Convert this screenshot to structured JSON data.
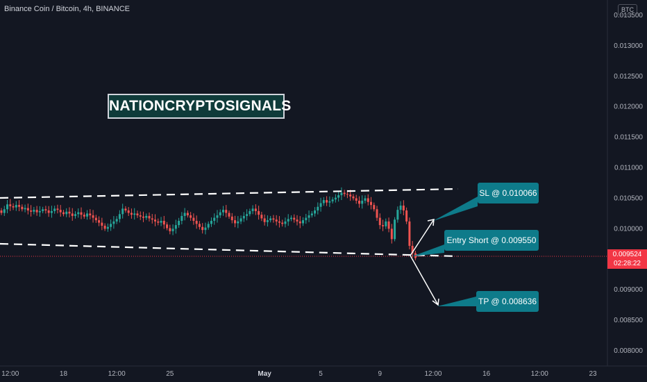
{
  "header": {
    "title": "Binance Coin / Bitcoin, 4h, BINANCE",
    "currency_badge": "BTC"
  },
  "watermark": {
    "text": "NATIONCRYPTOSIGNALS"
  },
  "price_tag": {
    "price": "0.009524",
    "countdown": "02:28:22"
  },
  "annotations": {
    "sl": "SL @ 0.010066",
    "entry": "Entry Short @ 0.009550",
    "tp": "TP @ 0.008636"
  },
  "colors": {
    "up": "#26a69a",
    "down": "#ef5350",
    "background": "#131722",
    "callout": "#0e7b8a",
    "price_tag": "#f23645"
  },
  "chart_data": {
    "type": "candlestick",
    "title": "Binance Coin / Bitcoin, 4h, BINANCE",
    "ylim": [
      0.00775,
      0.01375
    ],
    "y_ticks": [
      "0.013500",
      "0.013000",
      "0.012500",
      "0.012000",
      "0.011500",
      "0.011000",
      "0.010500",
      "0.010000",
      "0.009500",
      "0.009000",
      "0.008500",
      "0.008000"
    ],
    "y_tick_values": [
      0.0135,
      0.013,
      0.0125,
      0.012,
      0.0115,
      0.011,
      0.0105,
      0.01,
      0.0095,
      0.009,
      0.0085,
      0.008
    ],
    "x_ticks": [
      "12:00",
      "18",
      "12:00",
      "25",
      "May",
      "5",
      "9",
      "12:00",
      "16",
      "12:00",
      "23"
    ],
    "x_tick_positions": [
      3,
      21,
      39,
      57,
      89,
      108,
      128,
      146,
      164,
      182,
      200
    ],
    "grid": false,
    "series": [
      {
        "name": "",
        "closes": [
          0.01026,
          0.01032,
          0.0104,
          0.01037,
          0.01035,
          0.01039,
          0.01036,
          0.01032,
          0.01034,
          0.0103,
          0.01028,
          0.01031,
          0.01027,
          0.01029,
          0.01032,
          0.0103,
          0.01026,
          0.01029,
          0.01033,
          0.01031,
          0.01027,
          0.01024,
          0.01028,
          0.01025,
          0.01021,
          0.01024,
          0.01027,
          0.01023,
          0.0102,
          0.01025,
          0.01022,
          0.01018,
          0.01014,
          0.0101,
          0.01005,
          0.01,
          0.01003,
          0.01008,
          0.01012,
          0.01016,
          0.01024,
          0.01033,
          0.0103,
          0.01026,
          0.01023,
          0.01025,
          0.01022,
          0.0102,
          0.01018,
          0.01021,
          0.01017,
          0.01015,
          0.01012,
          0.0101,
          0.01013,
          0.01007,
          0.01001,
          0.00996,
          0.01,
          0.01006,
          0.01013,
          0.01021,
          0.01026,
          0.01022,
          0.01018,
          0.01013,
          0.01008,
          0.01003,
          0.00998,
          0.01002,
          0.01008,
          0.01013,
          0.01018,
          0.01022,
          0.01027,
          0.01031,
          0.01026,
          0.0102,
          0.01014,
          0.01009,
          0.01012,
          0.01017,
          0.01021,
          0.01024,
          0.01029,
          0.01033,
          0.01029,
          0.01023,
          0.01017,
          0.01011,
          0.01014,
          0.01017,
          0.01015,
          0.01012,
          0.0101,
          0.01008,
          0.01012,
          0.01016,
          0.01018,
          0.01015,
          0.01012,
          0.01009,
          0.01014,
          0.01018,
          0.01022,
          0.01025,
          0.0103,
          0.01036,
          0.01042,
          0.01047,
          0.01043,
          0.01045,
          0.01048,
          0.01051,
          0.01055,
          0.01059,
          0.01057,
          0.01056,
          0.01053,
          0.0105,
          0.01046,
          0.01041,
          0.01046,
          0.0105,
          0.01044,
          0.01039,
          0.01032,
          0.01018,
          0.01006,
          0.01004,
          0.01012,
          0.01,
          0.00983,
          0.01015,
          0.01031,
          0.01038,
          0.0103,
          0.01012,
          0.00972,
          0.0096,
          0.00952
        ]
      }
    ]
  }
}
